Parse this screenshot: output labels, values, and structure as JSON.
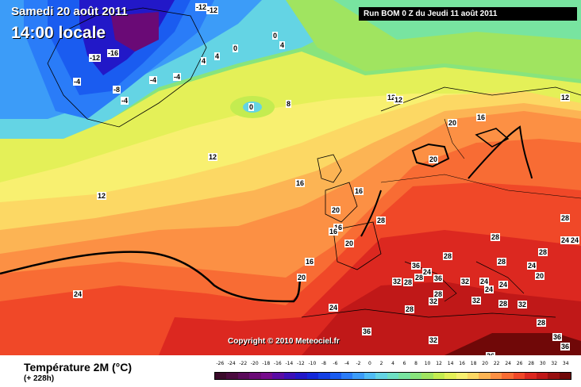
{
  "header": {
    "date": "Samedi 20 août 2011",
    "time": "14:00 locale",
    "run": "Run BOM 0 Z du Jeudi 11 août 2011"
  },
  "copyright": "Copyright © 2010 Meteociel.fr",
  "legend": {
    "title": "Température 2M  (°C)",
    "subtitle": "(+ 228h)",
    "ticks": [
      "-26",
      "-24",
      "-22",
      "-20",
      "-18",
      "-16",
      "-14",
      "-12",
      "-10",
      "-8",
      "-6",
      "-4",
      "-2",
      "0",
      "2",
      "4",
      "6",
      "8",
      "10",
      "12",
      "14",
      "16",
      "18",
      "20",
      "22",
      "24",
      "26",
      "28",
      "30",
      "32",
      "34"
    ],
    "colors": [
      "#3a0a2a",
      "#4a0a3e",
      "#5a0a5a",
      "#6a0a76",
      "#760c8c",
      "#5a0ca4",
      "#3c10b8",
      "#2218c8",
      "#1428d8",
      "#1440e4",
      "#1a5cf0",
      "#2a7cf8",
      "#3c9cf8",
      "#50bcf4",
      "#64d4e4",
      "#6ee0c4",
      "#78e4a0",
      "#88e47c",
      "#a0e460",
      "#c4ec50",
      "#e4f058",
      "#f8f070",
      "#fcd864",
      "#fcb454",
      "#fc9044",
      "#f86c34",
      "#f04828",
      "#dc2820",
      "#c01818",
      "#981010",
      "#700808"
    ]
  },
  "map_labels": [
    {
      "text": "-12"
    },
    {
      "text": "-12"
    },
    {
      "text": "-16"
    },
    {
      "text": "-12"
    },
    {
      "text": "-4"
    },
    {
      "text": "-8"
    },
    {
      "text": "-4"
    },
    {
      "text": "-4"
    },
    {
      "text": "-4"
    },
    {
      "text": "0"
    },
    {
      "text": "0"
    },
    {
      "text": "4"
    },
    {
      "text": "4"
    },
    {
      "text": "4"
    },
    {
      "text": "8"
    },
    {
      "text": "0"
    },
    {
      "text": "12"
    },
    {
      "text": "12"
    },
    {
      "text": "12"
    },
    {
      "text": "12"
    },
    {
      "text": "16"
    },
    {
      "text": "16"
    },
    {
      "text": "16"
    },
    {
      "text": "20"
    },
    {
      "text": "20"
    },
    {
      "text": "20"
    },
    {
      "text": "16"
    },
    {
      "text": "16"
    },
    {
      "text": "16"
    },
    {
      "text": "20"
    },
    {
      "text": "20"
    },
    {
      "text": "28"
    },
    {
      "text": "28"
    },
    {
      "text": "28"
    },
    {
      "text": "28"
    },
    {
      "text": "28"
    },
    {
      "text": "24"
    },
    {
      "text": "24"
    },
    {
      "text": "28"
    },
    {
      "text": "24"
    },
    {
      "text": "20"
    },
    {
      "text": "24"
    },
    {
      "text": "36"
    },
    {
      "text": "28"
    },
    {
      "text": "32"
    },
    {
      "text": "28"
    },
    {
      "text": "36"
    },
    {
      "text": "24"
    },
    {
      "text": "32"
    },
    {
      "text": "32"
    },
    {
      "text": "28"
    },
    {
      "text": "32"
    },
    {
      "text": "24"
    },
    {
      "text": "28"
    },
    {
      "text": "32"
    },
    {
      "text": "28"
    },
    {
      "text": "36"
    },
    {
      "text": "36"
    },
    {
      "text": "32"
    },
    {
      "text": "36"
    },
    {
      "text": "24"
    },
    {
      "text": "24"
    },
    {
      "text": "28"
    },
    {
      "text": "24"
    },
    {
      "text": "36"
    },
    {
      "text": "12"
    }
  ]
}
